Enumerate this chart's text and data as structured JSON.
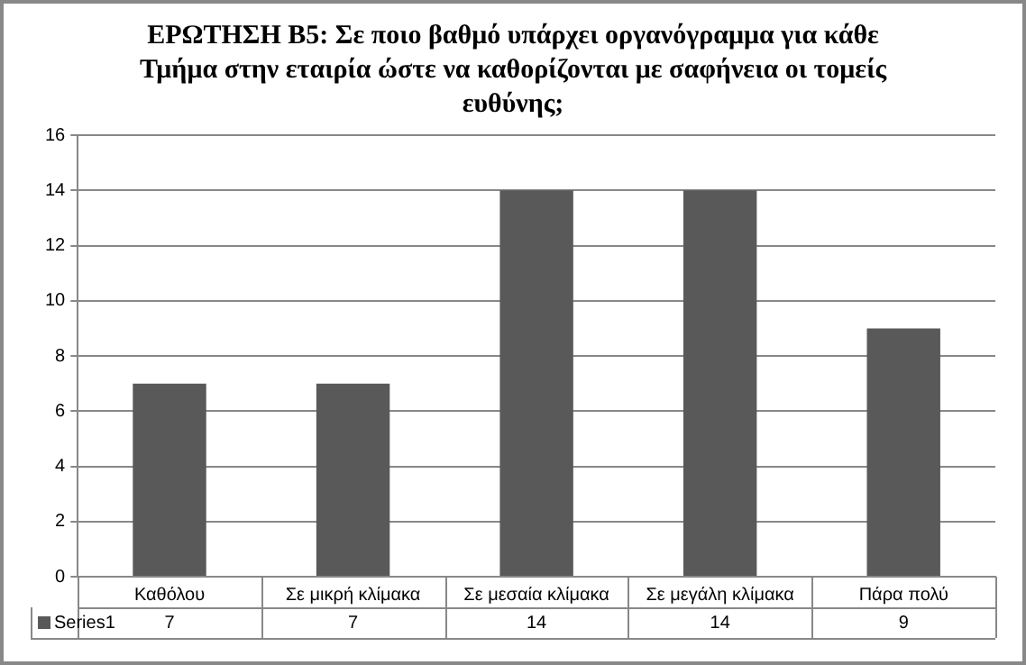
{
  "chart_data": {
    "type": "bar",
    "title": "ΕΡΩΤΗΣΗ Β5: Σε ποιο βαθμό υπάρχει οργανόγραμμα για κάθε Τμήμα στην εταιρία ώστε να καθορίζονται με σαφήνεια οι τομείς ευθύνης;",
    "categories": [
      "Καθόλου",
      "Σε μικρή κλίμακα",
      "Σε μεσαία κλίμακα",
      "Σε μεγάλη κλίμακα",
      "Πάρα πολύ"
    ],
    "series": [
      {
        "name": "Series1",
        "color": "#595959",
        "values": [
          7,
          7,
          14,
          14,
          9
        ]
      }
    ],
    "ylim": [
      0,
      16
    ],
    "yticks": [
      0,
      2,
      4,
      6,
      8,
      10,
      12,
      14,
      16
    ],
    "grid": "y",
    "legend": "bottom",
    "data_labels": true
  }
}
